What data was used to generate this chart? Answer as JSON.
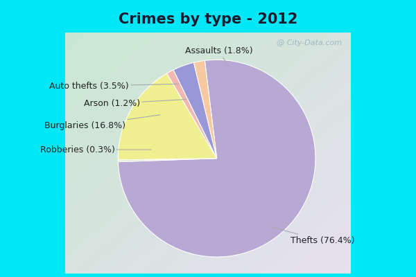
{
  "title": "Crimes by type - 2012",
  "slices": [
    {
      "label": "Thefts (76.4%)",
      "value": 76.4,
      "color": "#b8a8d4"
    },
    {
      "label": "Robberies (0.3%)",
      "value": 0.3,
      "color": "#d8e8c8"
    },
    {
      "label": "Burglaries (16.8%)",
      "value": 16.8,
      "color": "#f0f090"
    },
    {
      "label": "Arson (1.2%)",
      "value": 1.2,
      "color": "#f0b8b0"
    },
    {
      "label": "Auto thefts (3.5%)",
      "value": 3.5,
      "color": "#9898d8"
    },
    {
      "label": "Assaults (1.8%)",
      "value": 1.8,
      "color": "#f8c8a0"
    }
  ],
  "startangle": 97,
  "title_fontsize": 15,
  "label_fontsize": 9,
  "border_color": "#00e8f8",
  "border_width": 8,
  "bg_color_topleft": "#c8e8d0",
  "bg_color_bottomright": "#e8e0f0",
  "watermark": "@ City-Data.com"
}
